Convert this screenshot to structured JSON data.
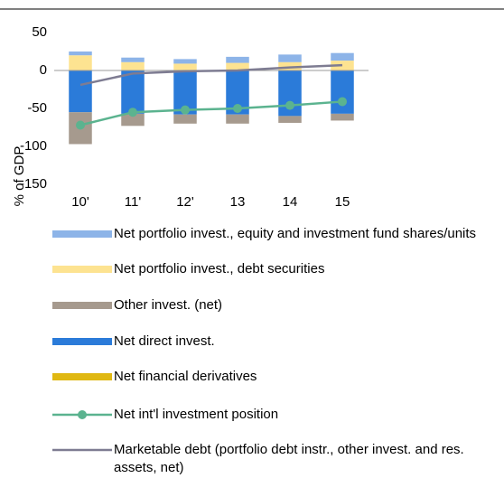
{
  "chart_data": {
    "type": "bar",
    "y_label": "% of GDP",
    "categories": [
      "10'",
      "11'",
      "12'",
      "13",
      "14",
      "15"
    ],
    "ylim": [
      -150,
      50
    ],
    "yticks": [
      -150,
      -100,
      -50,
      0,
      50
    ],
    "series": [
      {
        "name": "Net portfolio invest., equity and investment fund shares/units",
        "type": "bar",
        "color": "#8db4e8",
        "values": [
          5,
          6,
          6,
          8,
          10,
          10
        ]
      },
      {
        "name": "Net portfolio invest., debt securities",
        "type": "bar",
        "color": "#fde391",
        "values": [
          20,
          11,
          9,
          10,
          11,
          13
        ]
      },
      {
        "name": "Other invest. (net)",
        "type": "bar",
        "color": "#a69a8e",
        "values": [
          -42,
          -16,
          -12,
          -12,
          -9,
          -9
        ]
      },
      {
        "name": "Net direct invest.",
        "type": "bar",
        "color": "#2b7bd9",
        "values": [
          -55,
          -57,
          -58,
          -58,
          -60,
          -57
        ]
      },
      {
        "name": "Net financial derivatives",
        "type": "bar",
        "color": "#e0b812",
        "values": [
          0,
          0,
          0,
          0,
          0,
          0
        ]
      },
      {
        "name": "Net int'l investment position",
        "type": "line",
        "marker": true,
        "color": "#5bb38f",
        "values": [
          -72,
          -55,
          -52,
          -50,
          -46,
          -41
        ]
      },
      {
        "name": "Marketable debt (portfolio debt instr., other invest. and res. assets, net)",
        "type": "line",
        "marker": false,
        "color": "#7e7c92",
        "values": [
          -19,
          -4,
          -1,
          0,
          4,
          7
        ]
      }
    ]
  }
}
